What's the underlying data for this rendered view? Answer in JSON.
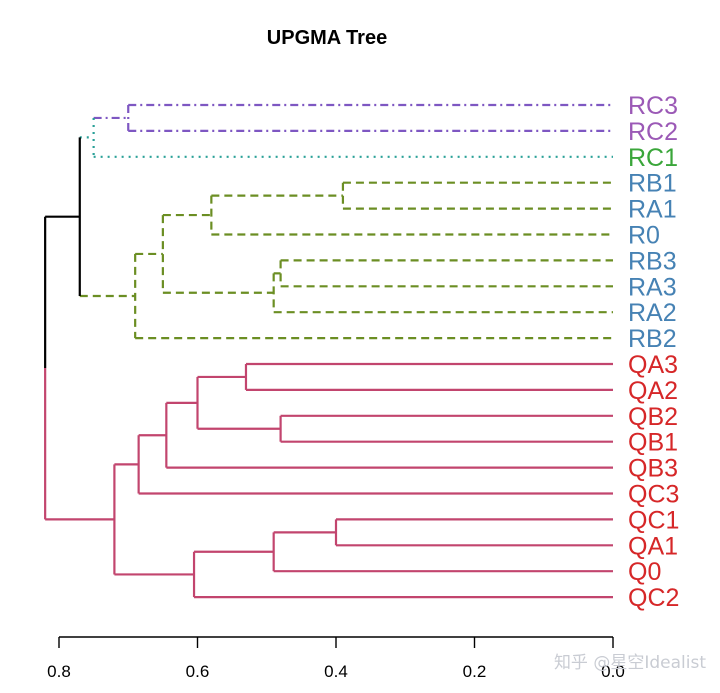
{
  "chart_data": {
    "type": "dendrogram",
    "title": "UPGMA Tree",
    "xlim": [
      0.82,
      0.0
    ],
    "x_ticks": [
      0.8,
      0.6,
      0.4,
      0.2,
      0.0
    ],
    "x_tick_labels": [
      "0.8",
      "0.6",
      "0.4",
      "0.2",
      "0.0"
    ],
    "tips": [
      "RC3",
      "RC2",
      "RC1",
      "RB1",
      "RA1",
      "R0",
      "RB3",
      "RA3",
      "RA2",
      "RB2",
      "QA3",
      "QA2",
      "QB2",
      "QB1",
      "QB3",
      "QC3",
      "QC1",
      "QA1",
      "Q0",
      "QC2"
    ],
    "tip_colors": {
      "RC3": "#9b59b6",
      "RC2": "#9b59b6",
      "RC1": "#3aa63a",
      "RB1": "#4682b4",
      "RA1": "#4682b4",
      "R0": "#4682b4",
      "RB3": "#4682b4",
      "RA3": "#4682b4",
      "RA2": "#4682b4",
      "RB2": "#4682b4",
      "QA3": "#d62728",
      "QA2": "#d62728",
      "QB2": "#d62728",
      "QB1": "#d62728",
      "QB3": "#d62728",
      "QC3": "#d62728",
      "QC1": "#d62728",
      "QA1": "#d62728",
      "Q0": "#d62728",
      "QC2": "#d62728"
    },
    "clades": [
      {
        "name": "RC-group",
        "color": "#7e57c2",
        "dash": "8 4 2 4"
      },
      {
        "name": "RC1-branch",
        "color": "#2aa198",
        "dash": "2 5"
      },
      {
        "name": "R-group",
        "color": "#6b8e23",
        "dash": "8 5"
      },
      {
        "name": "Q-group",
        "color": "#c2456e",
        "dash": ""
      },
      {
        "name": "root",
        "color": "#000000",
        "dash": ""
      }
    ],
    "tree": {
      "height": 0.82,
      "clade": "root",
      "split": "Q-group",
      "children": [
        {
          "height": 0.77,
          "clade": "root",
          "children": [
            {
              "height": 0.75,
              "clade": "RC1-branch",
              "children": [
                {
                  "height": 0.7,
                  "clade": "RC-group",
                  "children": [
                    {
                      "tip": "RC3",
                      "clade": "RC-group"
                    },
                    {
                      "tip": "RC2",
                      "clade": "RC-group"
                    }
                  ]
                },
                {
                  "tip": "RC1",
                  "clade": "RC1-branch"
                }
              ]
            },
            {
              "height": 0.69,
              "clade": "R-group",
              "children": [
                {
                  "height": 0.65,
                  "clade": "R-group",
                  "children": [
                    {
                      "height": 0.58,
                      "clade": "R-group",
                      "children": [
                        {
                          "height": 0.39,
                          "clade": "R-group",
                          "children": [
                            {
                              "tip": "RB1",
                              "clade": "R-group"
                            },
                            {
                              "tip": "RA1",
                              "clade": "R-group"
                            }
                          ]
                        },
                        {
                          "tip": "R0",
                          "clade": "R-group"
                        }
                      ]
                    },
                    {
                      "height": 0.49,
                      "clade": "R-group",
                      "children": [
                        {
                          "height": 0.48,
                          "clade": "R-group",
                          "children": [
                            {
                              "tip": "RB3",
                              "clade": "R-group"
                            },
                            {
                              "tip": "RA3",
                              "clade": "R-group"
                            }
                          ]
                        },
                        {
                          "tip": "RA2",
                          "clade": "R-group"
                        }
                      ]
                    }
                  ]
                },
                {
                  "tip": "RB2",
                  "clade": "R-group"
                }
              ]
            }
          ]
        },
        {
          "height": 0.72,
          "clade": "Q-group",
          "children": [
            {
              "height": 0.685,
              "clade": "Q-group",
              "children": [
                {
                  "height": 0.645,
                  "clade": "Q-group",
                  "children": [
                    {
                      "height": 0.6,
                      "clade": "Q-group",
                      "children": [
                        {
                          "height": 0.53,
                          "clade": "Q-group",
                          "children": [
                            {
                              "tip": "QA3",
                              "clade": "Q-group"
                            },
                            {
                              "tip": "QA2",
                              "clade": "Q-group"
                            }
                          ]
                        },
                        {
                          "height": 0.48,
                          "clade": "Q-group",
                          "children": [
                            {
                              "tip": "QB2",
                              "clade": "Q-group"
                            },
                            {
                              "tip": "QB1",
                              "clade": "Q-group"
                            }
                          ]
                        }
                      ]
                    },
                    {
                      "tip": "QB3",
                      "clade": "Q-group"
                    }
                  ]
                },
                {
                  "tip": "QC3",
                  "clade": "Q-group"
                }
              ]
            },
            {
              "height": 0.605,
              "clade": "Q-group",
              "children": [
                {
                  "height": 0.49,
                  "clade": "Q-group",
                  "children": [
                    {
                      "height": 0.4,
                      "clade": "Q-group",
                      "children": [
                        {
                          "tip": "QC1",
                          "clade": "Q-group"
                        },
                        {
                          "tip": "QA1",
                          "clade": "Q-group"
                        }
                      ]
                    },
                    {
                      "tip": "Q0",
                      "clade": "Q-group"
                    }
                  ]
                },
                {
                  "tip": "QC2",
                  "clade": "Q-group"
                }
              ]
            }
          ]
        }
      ]
    }
  },
  "watermark": "知乎 @星空Idealist"
}
